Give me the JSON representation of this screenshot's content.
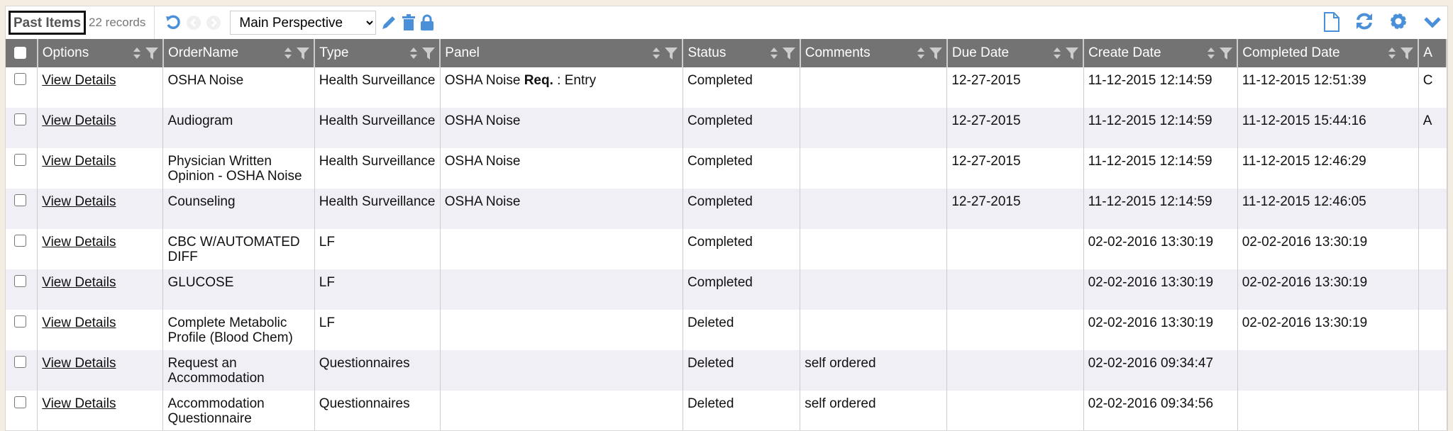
{
  "toolbar": {
    "title": "Past Items",
    "records": "22 records",
    "perspective": "Main Perspective"
  },
  "colors": {
    "accent": "#4a90d9",
    "header_bg": "#737373"
  },
  "columns": [
    "Options",
    "OrderName",
    "Type",
    "Panel",
    "Status",
    "Comments",
    "Due Date",
    "Create Date",
    "Completed Date",
    "A"
  ],
  "rows": [
    {
      "options": "View Details",
      "order": "OSHA Noise",
      "type": "Health Surveillance",
      "panel": "OSHA Noise",
      "panel_bold": "Req.",
      "panel_suffix": " : Entry",
      "status": "Completed",
      "comments": "",
      "due": "12-27-2015",
      "created": "11-12-2015 12:14:59",
      "completed": "11-12-2015 12:51:39",
      "extra": "C"
    },
    {
      "options": "View Details",
      "order": "Audiogram",
      "type": "Health Surveillance",
      "panel": "OSHA Noise",
      "status": "Completed",
      "comments": "",
      "due": "12-27-2015",
      "created": "11-12-2015 12:14:59",
      "completed": "11-12-2015 15:44:16",
      "extra": "A"
    },
    {
      "options": "View Details",
      "order": "Physician Written Opinion - OSHA Noise",
      "type": "Health Surveillance",
      "panel": "OSHA Noise",
      "status": "Completed",
      "comments": "",
      "due": "12-27-2015",
      "created": "11-12-2015 12:14:59",
      "completed": "11-12-2015 12:46:29",
      "extra": ""
    },
    {
      "options": "View Details",
      "order": "Counseling",
      "type": "Health Surveillance",
      "panel": "OSHA Noise",
      "status": "Completed",
      "comments": "",
      "due": "12-27-2015",
      "created": "11-12-2015 12:14:59",
      "completed": "11-12-2015 12:46:05",
      "extra": ""
    },
    {
      "options": "View Details",
      "order": "CBC W/AUTOMATED DIFF",
      "type": "LF",
      "panel": "",
      "status": "Completed",
      "comments": "",
      "due": "",
      "created": "02-02-2016 13:30:19",
      "completed": "02-02-2016 13:30:19",
      "extra": ""
    },
    {
      "options": "View Details",
      "order": "GLUCOSE",
      "type": "LF",
      "panel": "",
      "status": "Completed",
      "comments": "",
      "due": "",
      "created": "02-02-2016 13:30:19",
      "completed": "02-02-2016 13:30:19",
      "extra": ""
    },
    {
      "options": "View Details",
      "order": "Complete Metabolic Profile (Blood Chem)",
      "type": "LF",
      "panel": "",
      "status": "Deleted",
      "comments": "",
      "due": "",
      "created": "02-02-2016 13:30:19",
      "completed": "02-02-2016 13:30:19",
      "extra": ""
    },
    {
      "options": "View Details",
      "order": "Request an Accommodation",
      "type": "Questionnaires",
      "panel": "",
      "status": "Deleted",
      "comments": "self ordered",
      "due": "",
      "created": "02-02-2016 09:34:47",
      "completed": "",
      "extra": ""
    },
    {
      "options": "View Details",
      "order": "Accommodation Questionnaire",
      "type": "Questionnaires",
      "panel": "",
      "status": "Deleted",
      "comments": "self ordered",
      "due": "",
      "created": "02-02-2016 09:34:56",
      "completed": "",
      "extra": ""
    }
  ]
}
